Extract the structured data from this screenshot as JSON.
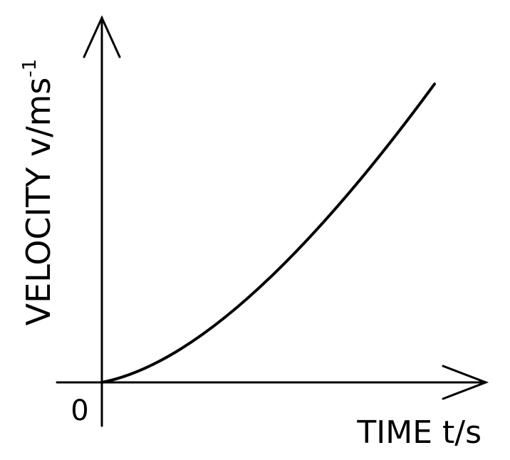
{
  "y_axis_label": {
    "text": "VELOCITY v/ms",
    "superscript": "-1"
  },
  "x_axis_label": "TIME t/s",
  "origin_label": "0"
}
